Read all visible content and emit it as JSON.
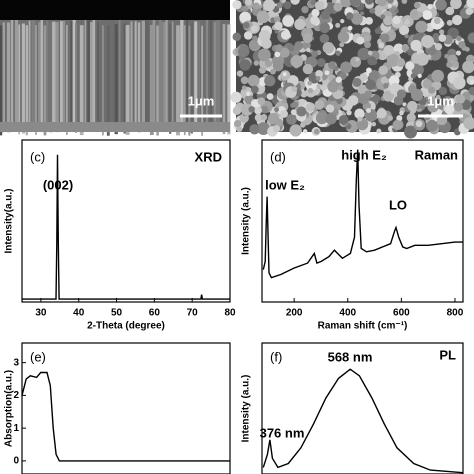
{
  "images": [
    {
      "scale_bar": "1μm"
    },
    {
      "scale_bar": "1μm"
    }
  ],
  "chart_data": [
    {
      "type": "line",
      "annotations": [
        "(c)",
        "XRD",
        "(002)"
      ],
      "x_label": "2-Theta (degree)",
      "y_label": "Intensity(a.u.)",
      "color": "#000000",
      "x": [
        25,
        30,
        34,
        34.2,
        34.4,
        34.6,
        34.8,
        60,
        72.3,
        72.5,
        72.7,
        80
      ],
      "values": [
        2,
        2,
        2,
        40,
        100,
        40,
        2,
        2,
        2,
        5,
        2,
        2
      ],
      "xlim": [
        25,
        80
      ],
      "ylim": [
        0,
        110
      ],
      "xticks": [
        30,
        40,
        50,
        60,
        70,
        80
      ]
    },
    {
      "type": "line",
      "annotations": [
        "(d)",
        "Raman",
        "high E₂",
        "low E₂",
        "LO"
      ],
      "x_label": "Raman shift (cm⁻¹)",
      "y_label": "Intensity (a.u.)",
      "color": "#000000",
      "x": [
        85,
        92,
        96,
        99,
        102,
        106,
        115,
        150,
        200,
        250,
        275,
        285,
        300,
        330,
        350,
        380,
        410,
        425,
        432,
        437,
        442,
        450,
        470,
        500,
        530,
        560,
        575,
        580,
        590,
        605,
        620,
        650,
        700,
        750,
        800,
        830
      ],
      "values": [
        20,
        25,
        50,
        65,
        45,
        18,
        15,
        17,
        21,
        24,
        30,
        24,
        25,
        28,
        32,
        27,
        30,
        40,
        75,
        94,
        60,
        33,
        31,
        32,
        34,
        36,
        44,
        46,
        40,
        34,
        33,
        35,
        35,
        36,
        37,
        37
      ],
      "xlim": [
        80,
        830
      ],
      "ylim": [
        0,
        100
      ],
      "xticks": [
        200,
        400,
        600,
        800
      ]
    },
    {
      "type": "line",
      "annotations": [
        "(e)"
      ],
      "y_label": "Absorption(a.u.)",
      "color": "#000000",
      "x": [
        300,
        310,
        320,
        335,
        345,
        360,
        368,
        375,
        382,
        390,
        800
      ],
      "values": [
        2.0,
        2.5,
        2.6,
        2.55,
        2.7,
        2.7,
        2.3,
        1.0,
        0.2,
        0.0,
        0.0
      ],
      "xlim": [
        300,
        800
      ],
      "ylim": [
        -0.4,
        3.6
      ],
      "yticks": [
        0,
        1,
        2,
        3
      ]
    },
    {
      "type": "line",
      "annotations": [
        "(f)",
        "PL",
        "568 nm",
        "376 nm"
      ],
      "y_label": "Intensity (a.u.)",
      "color": "#000000",
      "x": [
        360,
        370,
        376,
        382,
        395,
        420,
        450,
        480,
        510,
        540,
        568,
        590,
        620,
        650,
        680,
        720,
        760,
        838
      ],
      "values": [
        5,
        15,
        26,
        12,
        5,
        8,
        20,
        38,
        58,
        73,
        80,
        75,
        58,
        38,
        20,
        8,
        3,
        1
      ],
      "xlim": [
        357,
        838
      ],
      "ylim": [
        0,
        100
      ]
    }
  ]
}
